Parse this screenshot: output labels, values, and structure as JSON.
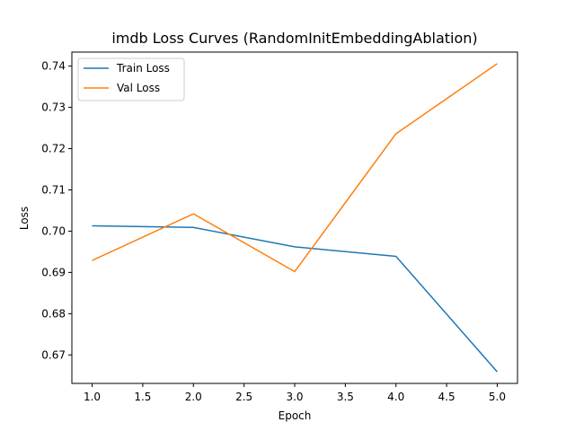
{
  "chart_data": {
    "type": "line",
    "title": "imdb Loss Curves (RandomInitEmbeddingAblation)",
    "xlabel": "Epoch",
    "ylabel": "Loss",
    "xlim": [
      0.8,
      5.2
    ],
    "ylim": [
      0.6631,
      0.7434
    ],
    "xticks": [
      "1.0",
      "1.5",
      "2.0",
      "2.5",
      "3.0",
      "3.5",
      "4.0",
      "4.5",
      "5.0"
    ],
    "yticks": [
      "0.67",
      "0.68",
      "0.69",
      "0.70",
      "0.71",
      "0.72",
      "0.73",
      "0.74"
    ],
    "grid": false,
    "legend_position": "top-left",
    "x": [
      1,
      2,
      3,
      4,
      5
    ],
    "series": [
      {
        "name": "Train Loss",
        "color": "#1f77b4",
        "values": [
          0.7013,
          0.7009,
          0.6962,
          0.6939,
          0.6659
        ]
      },
      {
        "name": "Val Loss",
        "color": "#ff7f0e",
        "values": [
          0.6929,
          0.7042,
          0.6902,
          0.7236,
          0.7406
        ]
      }
    ]
  }
}
